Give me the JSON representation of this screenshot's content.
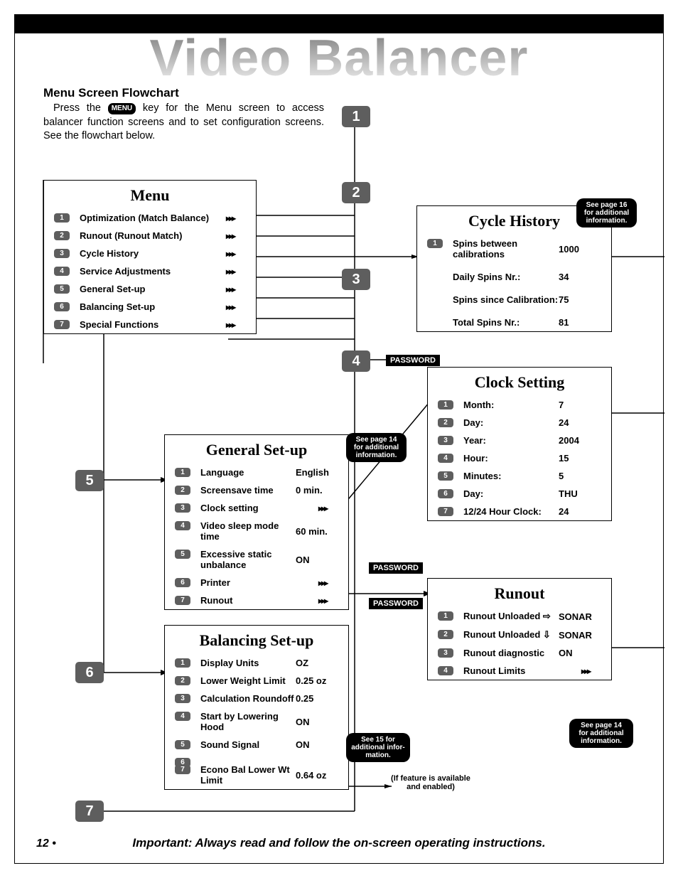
{
  "header_watermark": "Video Balancer",
  "section_title": "Menu Screen Flowchart",
  "intro_before": "Press the ",
  "intro_key": "MENU",
  "intro_after": " key for the Menu screen to access balancer function screens and to set configuration screens. See the flowchart below.",
  "footer_page": "12 •",
  "footer_note": "Important: Always read and follow the on-screen operating instructions.",
  "feature_note_l1": "(If feature is available",
  "feature_note_l2": "and enabled)",
  "password_label": "PASSWORD",
  "arrow_glyph": "▸▸▸",
  "steps": {
    "s1": "1",
    "s2": "2",
    "s3": "3",
    "s4": "4",
    "s5": "5",
    "s6": "6",
    "s7": "7"
  },
  "hints": {
    "p14": "See page 14\nfor additional\ninformation.",
    "p16": "See page 16\nfor additional\ninformation.",
    "p15": "See 15 for\nadditional infor-\nmation."
  },
  "menu": {
    "title": "Menu",
    "items": [
      {
        "n": "1",
        "label": "Optimization (Match Balance)",
        "val": "",
        "arrow": true
      },
      {
        "n": "2",
        "label": "Runout (Runout Match)",
        "val": "",
        "arrow": true
      },
      {
        "n": "3",
        "label": "Cycle History",
        "val": "",
        "arrow": true
      },
      {
        "n": "4",
        "label": "Service Adjustments",
        "val": "",
        "arrow": true
      },
      {
        "n": "5",
        "label": "General Set-up",
        "val": "",
        "arrow": true
      },
      {
        "n": "6",
        "label": "Balancing Set-up",
        "val": "",
        "arrow": true
      },
      {
        "n": "7",
        "label": "Special Functions",
        "val": "",
        "arrow": true
      }
    ]
  },
  "cycle": {
    "title": "Cycle History",
    "items": [
      {
        "n": "1",
        "label": "Spins between calibrations",
        "val": "1000"
      },
      {
        "n": "",
        "label": "Daily Spins Nr.:",
        "val": "34"
      },
      {
        "n": "",
        "label": "Spins since Calibration:",
        "val": "75"
      },
      {
        "n": "",
        "label": "Total Spins Nr.:",
        "val": "81"
      }
    ]
  },
  "clock": {
    "title": "Clock Setting",
    "items": [
      {
        "n": "1",
        "label": "Month:",
        "val": "7"
      },
      {
        "n": "2",
        "label": "Day:",
        "val": "24"
      },
      {
        "n": "3",
        "label": "Year:",
        "val": "2004"
      },
      {
        "n": "4",
        "label": "Hour:",
        "val": "15"
      },
      {
        "n": "5",
        "label": "Minutes:",
        "val": "5"
      },
      {
        "n": "6",
        "label": "Day:",
        "val": "THU"
      },
      {
        "n": "7",
        "label": "12/24 Hour Clock:",
        "val": "24"
      }
    ]
  },
  "general": {
    "title": "General Set-up",
    "items": [
      {
        "n": "1",
        "label": "Language",
        "val": "English"
      },
      {
        "n": "2",
        "label": "Screensave time",
        "val": "0 min."
      },
      {
        "n": "3",
        "label": "Clock setting",
        "val": "",
        "arrow": true
      },
      {
        "n": "4",
        "label": "Video sleep mode time",
        "val": "60 min."
      },
      {
        "n": "5",
        "label": "Excessive static unbalance",
        "val": "ON"
      },
      {
        "n": "6",
        "label": "Printer",
        "val": "",
        "arrow": true
      },
      {
        "n": "7",
        "label": "Runout",
        "val": "",
        "arrow": true
      }
    ]
  },
  "balancing": {
    "title": "Balancing Set-up",
    "items": [
      {
        "n": "1",
        "label": "Display Units",
        "val": "OZ"
      },
      {
        "n": "2",
        "label": "Lower Weight Limit",
        "val": "0.25 oz"
      },
      {
        "n": "3",
        "label": "Calculation Roundoff",
        "val": "0.25"
      },
      {
        "n": "4",
        "label": "Start by Lowering Hood",
        "val": "ON"
      },
      {
        "n": "5",
        "label": "Sound Signal",
        "val": "ON"
      },
      {
        "n": "6",
        "label": "",
        "val": ""
      },
      {
        "n": "7",
        "label": "Econo Bal Lower Wt Limit",
        "val": "0.64 oz"
      }
    ]
  },
  "runout": {
    "title": "Runout",
    "items": [
      {
        "n": "1",
        "label": "Runout Unloaded ⇨",
        "val": "SONAR"
      },
      {
        "n": "2",
        "label": "Runout Unloaded ⇩",
        "val": "SONAR"
      },
      {
        "n": "3",
        "label": "Runout diagnostic",
        "val": "ON"
      },
      {
        "n": "4",
        "label": "Runout Limits",
        "val": "",
        "arrow": true
      }
    ]
  }
}
